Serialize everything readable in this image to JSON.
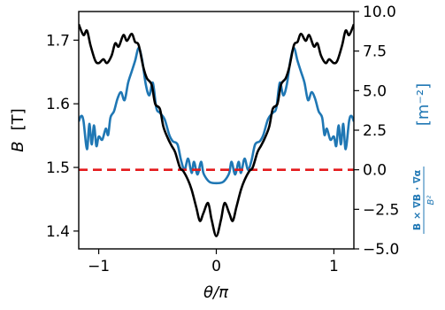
{
  "chart_data": {
    "type": "line",
    "xlabel": "θ/π",
    "ylabel_left_symbol": "B",
    "ylabel_left_unit": "[T]",
    "ylabel_right_numerator": "B × ∇B · ∇α",
    "ylabel_right_denominator": "B²",
    "ylabel_right_unit": "[m⁻²]",
    "xlim": [
      -1.17,
      1.17
    ],
    "ylim_left": [
      1.372,
      1.745
    ],
    "ylim_right": [
      -5.0,
      10.0
    ],
    "x_ticks": [
      -1,
      0,
      1
    ],
    "x_tick_labels": [
      "−1",
      "0",
      "1"
    ],
    "y_left_ticks": [
      1.4,
      1.5,
      1.6,
      1.7
    ],
    "y_left_tick_labels": [
      "1.4",
      "1.5",
      "1.6",
      "1.7"
    ],
    "y_right_ticks": [
      -5.0,
      -2.5,
      0.0,
      2.5,
      5.0,
      7.5,
      10.0
    ],
    "y_right_tick_labels": [
      "−5.0",
      "−2.5",
      "0.0",
      "2.5",
      "5.0",
      "7.5",
      "10.0"
    ],
    "zero_line_right": 0.0,
    "grid": false,
    "series": [
      {
        "axis": "left",
        "color": "#000000",
        "points": [
          [
            -1.17,
            1.725
          ],
          [
            -1.13,
            1.708
          ],
          [
            -1.1,
            1.715
          ],
          [
            -1.07,
            1.692
          ],
          [
            -1.03,
            1.668
          ],
          [
            -1.0,
            1.664
          ],
          [
            -0.96,
            1.67
          ],
          [
            -0.93,
            1.664
          ],
          [
            -0.89,
            1.676
          ],
          [
            -0.86,
            1.695
          ],
          [
            -0.83,
            1.69
          ],
          [
            -0.79,
            1.708
          ],
          [
            -0.76,
            1.699
          ],
          [
            -0.72,
            1.71
          ],
          [
            -0.69,
            1.697
          ],
          [
            -0.66,
            1.692
          ],
          [
            -0.62,
            1.657
          ],
          [
            -0.59,
            1.64
          ],
          [
            -0.55,
            1.63
          ],
          [
            -0.52,
            1.6
          ],
          [
            -0.48,
            1.592
          ],
          [
            -0.45,
            1.564
          ],
          [
            -0.41,
            1.545
          ],
          [
            -0.38,
            1.534
          ],
          [
            -0.35,
            1.524
          ],
          [
            -0.31,
            1.5
          ],
          [
            -0.28,
            1.494
          ],
          [
            -0.24,
            1.48
          ],
          [
            -0.21,
            1.465
          ],
          [
            -0.17,
            1.437
          ],
          [
            -0.14,
            1.416
          ],
          [
            -0.11,
            1.428
          ],
          [
            -0.07,
            1.444
          ],
          [
            -0.04,
            1.418
          ],
          [
            0.0,
            1.392
          ],
          [
            0.04,
            1.418
          ],
          [
            0.07,
            1.444
          ],
          [
            0.11,
            1.428
          ],
          [
            0.14,
            1.416
          ],
          [
            0.17,
            1.437
          ],
          [
            0.21,
            1.465
          ],
          [
            0.24,
            1.48
          ],
          [
            0.28,
            1.494
          ],
          [
            0.31,
            1.5
          ],
          [
            0.35,
            1.524
          ],
          [
            0.38,
            1.534
          ],
          [
            0.41,
            1.545
          ],
          [
            0.45,
            1.564
          ],
          [
            0.48,
            1.592
          ],
          [
            0.52,
            1.6
          ],
          [
            0.55,
            1.63
          ],
          [
            0.59,
            1.64
          ],
          [
            0.62,
            1.657
          ],
          [
            0.66,
            1.692
          ],
          [
            0.69,
            1.697
          ],
          [
            0.72,
            1.71
          ],
          [
            0.76,
            1.699
          ],
          [
            0.79,
            1.708
          ],
          [
            0.83,
            1.69
          ],
          [
            0.86,
            1.695
          ],
          [
            0.89,
            1.676
          ],
          [
            0.93,
            1.664
          ],
          [
            0.96,
            1.67
          ],
          [
            1.0,
            1.664
          ],
          [
            1.03,
            1.668
          ],
          [
            1.07,
            1.692
          ],
          [
            1.1,
            1.715
          ],
          [
            1.13,
            1.708
          ],
          [
            1.17,
            1.725
          ]
        ]
      },
      {
        "axis": "right",
        "color": "#1f77b4",
        "points": [
          [
            -1.17,
            3.05
          ],
          [
            -1.15,
            3.4
          ],
          [
            -1.13,
            3.1
          ],
          [
            -1.1,
            1.3
          ],
          [
            -1.08,
            2.9
          ],
          [
            -1.06,
            1.6
          ],
          [
            -1.04,
            2.8
          ],
          [
            -1.02,
            1.5
          ],
          [
            -1.0,
            2.1
          ],
          [
            -0.97,
            1.9
          ],
          [
            -0.94,
            2.6
          ],
          [
            -0.92,
            2.2
          ],
          [
            -0.9,
            3.3
          ],
          [
            -0.87,
            3.7
          ],
          [
            -0.84,
            4.5
          ],
          [
            -0.81,
            4.9
          ],
          [
            -0.78,
            4.4
          ],
          [
            -0.75,
            5.5
          ],
          [
            -0.72,
            6.2
          ],
          [
            -0.69,
            6.9
          ],
          [
            -0.66,
            7.7
          ],
          [
            -0.63,
            6.9
          ],
          [
            -0.6,
            5.4
          ],
          [
            -0.57,
            4.7
          ],
          [
            -0.54,
            5.5
          ],
          [
            -0.51,
            3.9
          ],
          [
            -0.48,
            3.6
          ],
          [
            -0.44,
            3.2
          ],
          [
            -0.4,
            2.2
          ],
          [
            -0.37,
            1.8
          ],
          [
            -0.33,
            1.6
          ],
          [
            -0.3,
            0.6
          ],
          [
            -0.27,
            0.0
          ],
          [
            -0.24,
            0.7
          ],
          [
            -0.21,
            -0.2
          ],
          [
            -0.19,
            0.5
          ],
          [
            -0.16,
            -0.3
          ],
          [
            -0.13,
            0.5
          ],
          [
            -0.11,
            -0.2
          ],
          [
            -0.08,
            -0.6
          ],
          [
            -0.05,
            -0.8
          ],
          [
            0.0,
            -0.85
          ],
          [
            0.05,
            -0.8
          ],
          [
            0.08,
            -0.6
          ],
          [
            0.11,
            -0.2
          ],
          [
            0.13,
            0.5
          ],
          [
            0.16,
            -0.3
          ],
          [
            0.19,
            0.5
          ],
          [
            0.21,
            -0.2
          ],
          [
            0.24,
            0.7
          ],
          [
            0.27,
            0.0
          ],
          [
            0.3,
            0.6
          ],
          [
            0.33,
            1.6
          ],
          [
            0.37,
            1.8
          ],
          [
            0.4,
            2.2
          ],
          [
            0.44,
            3.2
          ],
          [
            0.48,
            3.6
          ],
          [
            0.51,
            3.9
          ],
          [
            0.54,
            5.5
          ],
          [
            0.57,
            4.7
          ],
          [
            0.6,
            5.4
          ],
          [
            0.63,
            6.9
          ],
          [
            0.66,
            7.7
          ],
          [
            0.69,
            6.9
          ],
          [
            0.72,
            6.2
          ],
          [
            0.75,
            5.5
          ],
          [
            0.78,
            4.4
          ],
          [
            0.81,
            4.9
          ],
          [
            0.84,
            4.5
          ],
          [
            0.87,
            3.7
          ],
          [
            0.9,
            3.3
          ],
          [
            0.92,
            2.2
          ],
          [
            0.94,
            2.6
          ],
          [
            0.97,
            1.9
          ],
          [
            1.0,
            2.1
          ],
          [
            1.02,
            1.5
          ],
          [
            1.04,
            2.8
          ],
          [
            1.06,
            1.6
          ],
          [
            1.08,
            2.9
          ],
          [
            1.1,
            1.3
          ],
          [
            1.13,
            3.1
          ],
          [
            1.15,
            3.4
          ],
          [
            1.17,
            3.05
          ]
        ]
      },
      {
        "axis": "right",
        "color": "#e41a1c",
        "style": "dashed",
        "points": [
          [
            -1.17,
            0.0
          ],
          [
            1.17,
            0.0
          ]
        ]
      }
    ]
  }
}
